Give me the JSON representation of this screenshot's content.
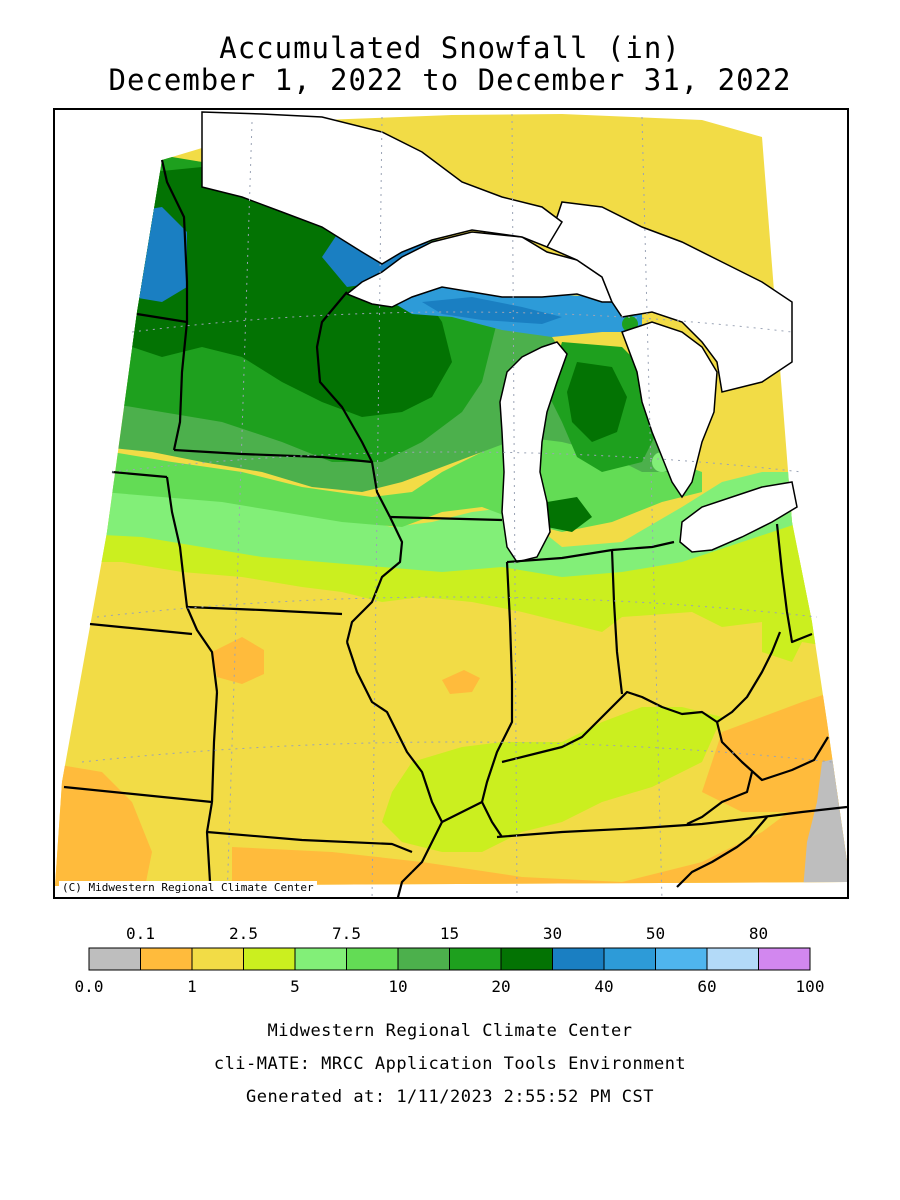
{
  "title": {
    "line1": "Accumulated Snowfall (in)",
    "line2": "December 1, 2022 to December 31, 2022"
  },
  "map": {
    "copyright": "(C) Midwestern Regional Climate Center",
    "water_color": "#ffffff",
    "border_color": "#000000"
  },
  "legend": {
    "top_labels": [
      "0.1",
      "2.5",
      "7.5",
      "15",
      "30",
      "50",
      "80"
    ],
    "bottom_labels": [
      "0.0",
      "1",
      "5",
      "10",
      "20",
      "40",
      "60",
      "100"
    ],
    "bins": [
      {
        "from": "0.0",
        "to": "0.1",
        "color": "#bebebe"
      },
      {
        "from": "0.1",
        "to": "1",
        "color": "#ffbb3c"
      },
      {
        "from": "1",
        "to": "2.5",
        "color": "#f2dc46"
      },
      {
        "from": "2.5",
        "to": "5",
        "color": "#cbef1f"
      },
      {
        "from": "5",
        "to": "7.5",
        "color": "#82ef78"
      },
      {
        "from": "7.5",
        "to": "10",
        "color": "#63dc55"
      },
      {
        "from": "10",
        "to": "15",
        "color": "#4cb04c"
      },
      {
        "from": "15",
        "to": "20",
        "color": "#1ea01e"
      },
      {
        "from": "20",
        "to": "30",
        "color": "#037303"
      },
      {
        "from": "30",
        "to": "40",
        "color": "#1a7fc2"
      },
      {
        "from": "40",
        "to": "50",
        "color": "#2d9bd8"
      },
      {
        "from": "50",
        "to": "60",
        "color": "#4fb5ee"
      },
      {
        "from": "60",
        "to": "80",
        "color": "#b3daf8"
      },
      {
        "from": "80",
        "to": "100",
        "color": "#d287ef"
      }
    ]
  },
  "footer": {
    "line1": "Midwestern Regional Climate Center",
    "line2": "cli-MATE: MRCC Application Tools Environment",
    "line3": "Generated at: 1/11/2023 2:55:52 PM CST"
  }
}
